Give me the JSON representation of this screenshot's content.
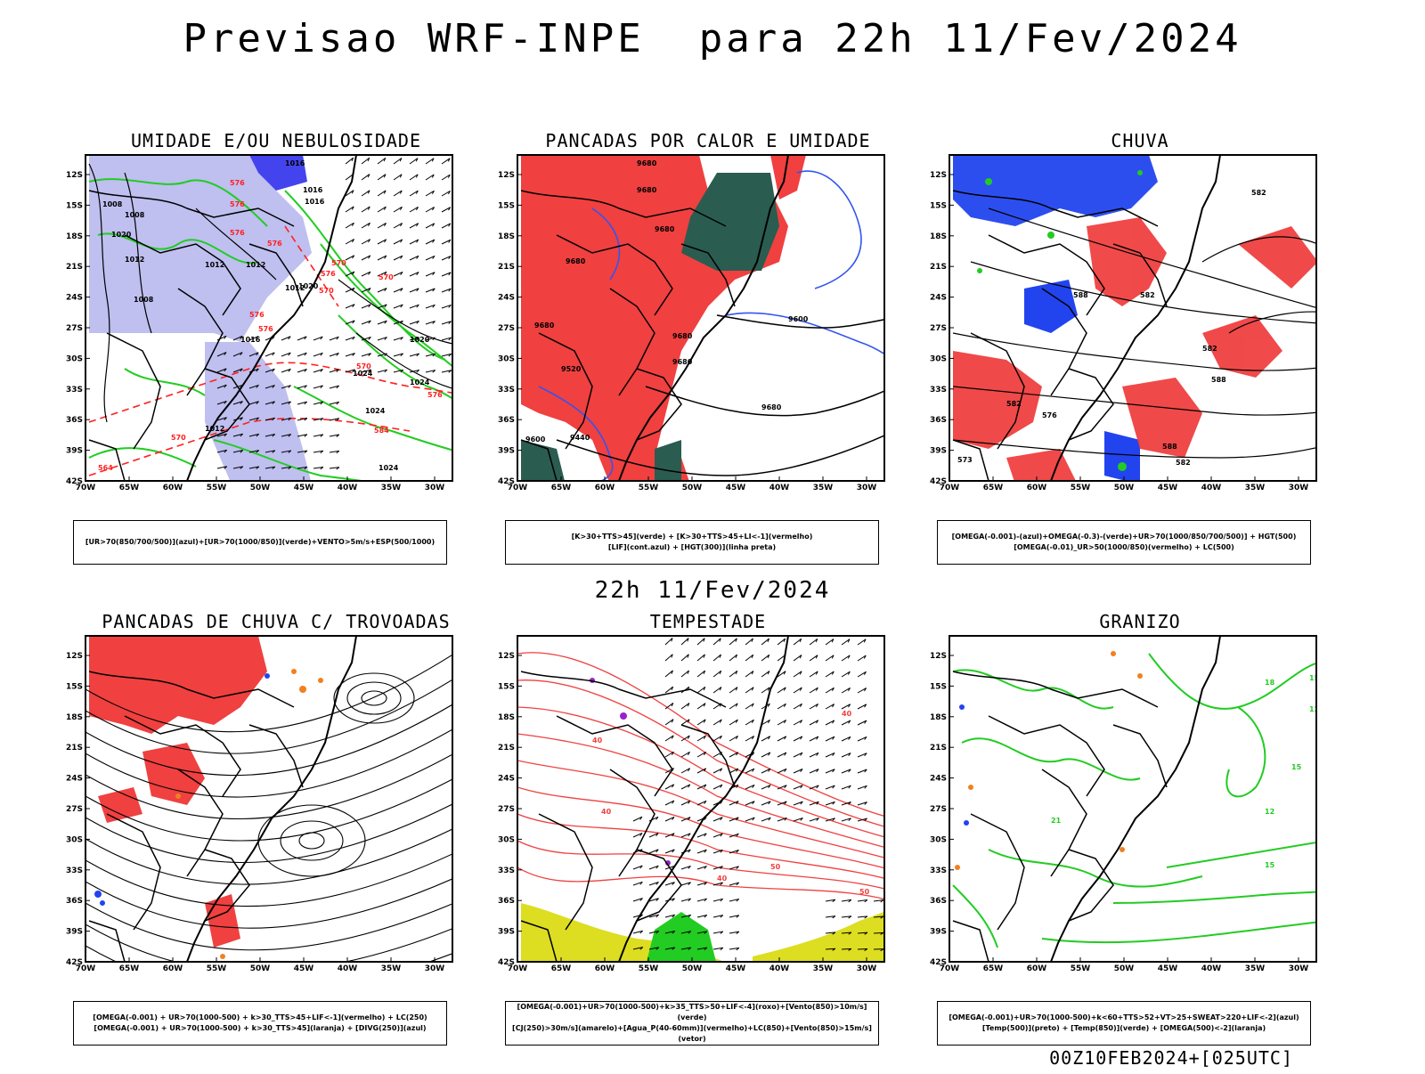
{
  "header": {
    "title": "Previsao WRF-INPE  para 22h 11/Fev/2024",
    "mid_date": "22h 11/Fev/2024",
    "footer": "00Z10FEB2024+[025UTC]"
  },
  "map_axes": {
    "lat_labels": [
      "12S",
      "15S",
      "18S",
      "21S",
      "24S",
      "27S",
      "30S",
      "33S",
      "36S",
      "39S",
      "42S"
    ],
    "lon_labels": [
      "70W",
      "65W",
      "60W",
      "55W",
      "50W",
      "45W",
      "40W",
      "35W",
      "30W"
    ]
  },
  "panels": [
    {
      "title": "UMIDADE E/OU NEBULOSIDADE",
      "legend": [
        "[UR>70(850/700/500)](azul)+[UR>70(1000/850)](verde)+VENTO>5m/s+ESP(500/1000)"
      ],
      "contour_labels": [
        "1016",
        "1016",
        "1016",
        "1008",
        "1008",
        "1020",
        "1012",
        "1012",
        "1012",
        "1012",
        "1008",
        "1016",
        "1020",
        "1020",
        "1024",
        "1024",
        "1024",
        "1024",
        "1012"
      ],
      "thickness_labels": [
        "576",
        "576",
        "576",
        "576",
        "576",
        "576",
        "576",
        "570",
        "570",
        "570",
        "570",
        "576",
        "584",
        "570",
        "564"
      ],
      "palette": {
        "wind": "#000000",
        "thickness": "#ff2020",
        "rh_low": "#22cc22",
        "rh_high_light": "#b8b8ee",
        "rh_high_dark": "#4444ee"
      }
    },
    {
      "title": "PANCADAS POR CALOR E UMIDADE",
      "legend": [
        "[K>30+TTS>45](verde) + [K>30+TTS>45+LI<-1](vermelho)",
        "[LIF](cont.azul) + [HGT(300)](linha preta)"
      ],
      "contour_labels": [
        "9680",
        "9680",
        "9680",
        "9680",
        "9680",
        "9680",
        "9680",
        "9600",
        "9680",
        "9520",
        "9440",
        "9600"
      ],
      "palette": {
        "red": "#f04040",
        "green": "#2b5c50",
        "blue": "#3355ee",
        "line": "#000000"
      }
    },
    {
      "title": "CHUVA",
      "legend": [
        "[OMEGA(-0.001)-(azul)+OMEGA(-0.3)-(verde)+UR>70(1000/850/700/500)] + HGT(500)",
        "[OMEGA(-0.01)_UR>50(1000/850)(vermelho) + LC(500)"
      ],
      "contour_labels": [
        "588",
        "582",
        "582",
        "588",
        "582",
        "582",
        "576",
        "573",
        "588",
        "582"
      ],
      "palette": {
        "red": "#f04040",
        "blue": "#2244ee",
        "green": "#22cc22",
        "line": "#000000"
      }
    },
    {
      "title": "PANCADAS DE CHUVA C/ TROVOADAS",
      "legend": [
        "[OMEGA(-0.001) + UR>70(1000-500) + k>30_TTS>45+LIF<-1](vermelho) + LC(250)",
        "[OMEGA(-0.001) + UR>70(1000-500) + k>30_TTS>45](laranja) + [DIVG(250)](azul)"
      ],
      "palette": {
        "red": "#f04040",
        "orange": "#f08020",
        "blue": "#2244ee",
        "line": "#000000"
      }
    },
    {
      "title": "TEMPESTADE",
      "legend": [
        "[OMEGA(-0.001)+UR>70(1000-500)+k>35_TTS>50+LIF<-4](roxo)+[Vento(850)>10m/s](verde)",
        "[CJ(250)>30m/s](amarelo)+[Agua_P(40-60mm)](vermelho)+LC(850)+[Vento(850)>15m/s](vetor)"
      ],
      "contour_labels": [
        "40",
        "40",
        "40",
        "50",
        "50",
        "40"
      ],
      "palette": {
        "yellow": "#dddd22",
        "red": "#f04040",
        "green": "#22cc22",
        "purple": "#9922cc",
        "line": "#000000"
      }
    },
    {
      "title": "GRANIZO",
      "legend": [
        "[OMEGA(-0.001)+UR>70(1000-500)+k<60+TTS>52+VT>25+SWEAT>220+LIF<-2](azul)",
        "[Temp(500)](preto) + [Temp(850)](verde) + [OMEGA(500)<-2](laranja)"
      ],
      "contour_labels": [
        "18",
        "15",
        "12",
        "15",
        "12",
        "15",
        "21"
      ],
      "palette": {
        "green": "#22cc22",
        "orange": "#f08020",
        "blue": "#2244ee",
        "line": "#000000"
      }
    }
  ]
}
